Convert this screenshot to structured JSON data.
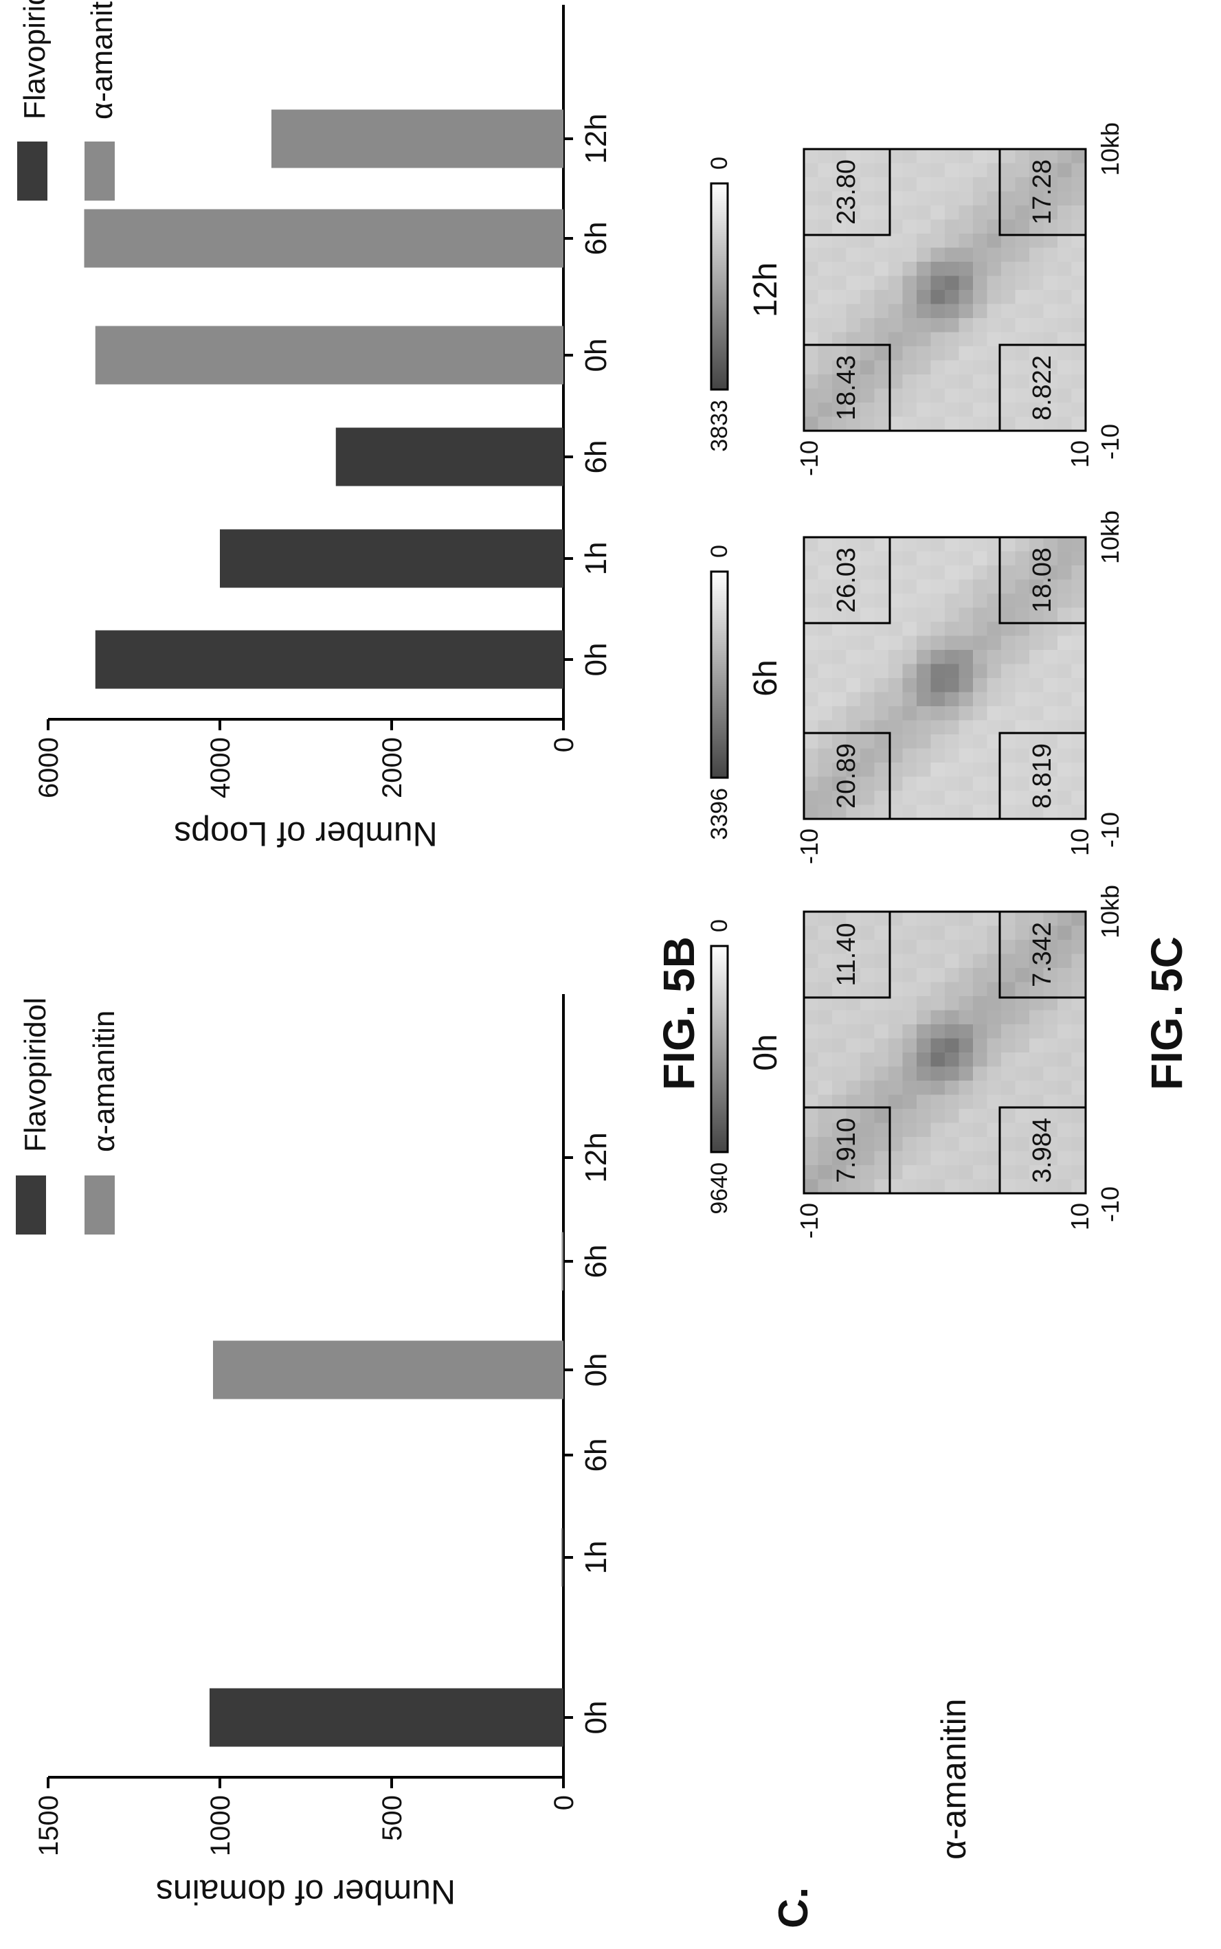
{
  "figure": {
    "panel_c_letter": "C.",
    "fig_5b_label": "FIG. 5B",
    "fig_5c_label": "FIG. 5C"
  },
  "chart_data": [
    {
      "type": "bar",
      "ylabel": "Number of domains",
      "ylim": [
        0,
        1500
      ],
      "yticks": [
        0,
        500,
        1000,
        1500
      ],
      "categories": [
        "0h",
        "1h",
        "6h",
        "0h",
        "6h",
        "12h"
      ],
      "series": [
        {
          "name": "Flavopiridol",
          "color": "#3a3a3a",
          "values": [
            1030,
            5,
            0,
            null,
            null,
            null
          ]
        },
        {
          "name": "α-amanitin",
          "color": "#8a8a8a",
          "values": [
            null,
            null,
            null,
            1020,
            5,
            0
          ]
        }
      ],
      "legend": "top-right",
      "grid": false
    },
    {
      "type": "bar",
      "ylabel": "Number of Loops",
      "ylim": [
        0,
        6000
      ],
      "yticks": [
        0,
        2000,
        4000,
        6000
      ],
      "categories": [
        "0h",
        "1h",
        "6h",
        "0h",
        "6h",
        "12h"
      ],
      "series": [
        {
          "name": "Flavopiridol",
          "color": "#3a3a3a",
          "values": [
            5450,
            4000,
            2650,
            null,
            null,
            null
          ]
        },
        {
          "name": "α-amanitin",
          "color": "#8a8a8a",
          "values": [
            null,
            null,
            null,
            5450,
            5580,
            3400
          ]
        }
      ],
      "legend": "top-right",
      "grid": false
    },
    {
      "type": "heatmap",
      "row_label": "α-amanitin",
      "axis_ticks": {
        "start": "-10",
        "end": "10",
        "x_end": "10kb"
      },
      "maps": [
        {
          "title": "0h",
          "colorbar_max": "9640",
          "colorbar_min": "0",
          "corners": {
            "top_left": "7.910",
            "top_right": "11.40",
            "bottom_left": "3.984",
            "bottom_right": "7.342"
          }
        },
        {
          "title": "6h",
          "colorbar_max": "3396",
          "colorbar_min": "0",
          "corners": {
            "top_left": "20.89",
            "top_right": "26.03",
            "bottom_left": "8.819",
            "bottom_right": "18.08"
          }
        },
        {
          "title": "12h",
          "colorbar_max": "3833",
          "colorbar_min": "0",
          "corners": {
            "top_left": "18.43",
            "top_right": "23.80",
            "bottom_left": "8.822",
            "bottom_right": "17.28"
          }
        }
      ]
    }
  ]
}
